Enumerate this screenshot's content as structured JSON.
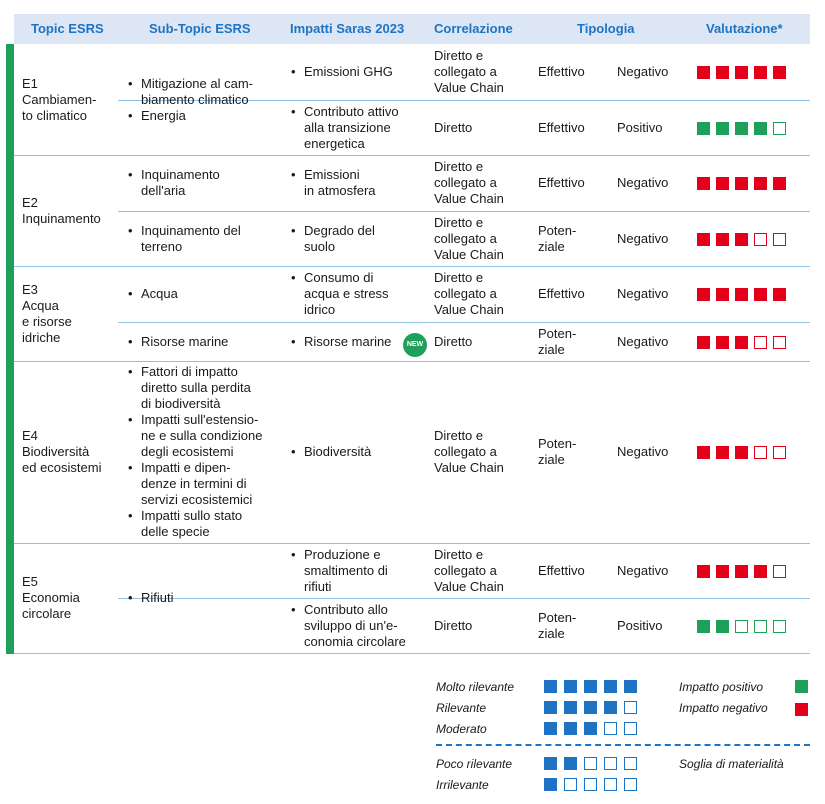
{
  "colors": {
    "negative": "#e3001b",
    "positive": "#1ea05a",
    "neutral": "#1e74c2",
    "header_bg": "#dce6f5",
    "header_text": "#1e74c2"
  },
  "headers": [
    "Topic ESRS",
    "Sub-Topic ESRS",
    "Impatti Saras 2023",
    "Correlazione",
    "Tipologia",
    "Valutazione*"
  ],
  "topics": [
    {
      "label": "E1\nCambiamen-\nto climatico"
    },
    {
      "label": "E2\nInquinamento"
    },
    {
      "label": "E3\nAcqua\ne risorse\nidriche"
    },
    {
      "label": "E4\nBiodiversità\ned ecosistemi"
    },
    {
      "label": "E5\nEconomia\ncircolare"
    }
  ],
  "subtopics": [
    [
      "Mitigazione al cam-\nbiamento climatico",
      "Energia"
    ],
    [
      "Inquinamento\ndell'aria"
    ],
    [
      "Inquinamento del\nterreno"
    ],
    [
      "Acqua"
    ],
    [
      "Risorse marine"
    ],
    [
      "Fattori di impatto\ndiretto sulla perdita\ndi biodiversità",
      "Impatti sull'estensio-\nne e sulla condizione\ndegli ecosistemi",
      "Impatti e dipen-\ndenze in termini di\nservizi ecosistemici",
      "Impatti sullo stato\ndelle specie"
    ],
    [
      "Rifiuti"
    ]
  ],
  "rows": [
    {
      "impact": "Emissioni GHG",
      "correlation": "Diretto e\ncollegato a\nValue Chain",
      "type": "Effettivo",
      "sign": "Negativo",
      "score": 5,
      "positive": false
    },
    {
      "impact": "Contributo attivo\nalla transizione\nenergetica",
      "correlation": "Diretto",
      "type": "Effettivo",
      "sign": "Positivo",
      "score": 4,
      "positive": true
    },
    {
      "impact": "Emissioni\nin atmosfera",
      "correlation": "Diretto e\ncollegato a\nValue Chain",
      "type": "Effettivo",
      "sign": "Negativo",
      "score": 5,
      "positive": false
    },
    {
      "impact": "Degrado del\nsuolo",
      "correlation": "Diretto e\ncollegato a\nValue Chain",
      "type": "Poten-\nziale",
      "sign": "Negativo",
      "score": 3,
      "positive": false
    },
    {
      "impact": "Consumo di\nacqua e stress\nidrico",
      "correlation": "Diretto e\ncollegato a\nValue Chain",
      "type": "Effettivo",
      "sign": "Negativo",
      "score": 5,
      "positive": false
    },
    {
      "impact": "Risorse marine",
      "correlation": "Diretto",
      "type": "Poten-\nziale",
      "sign": "Negativo",
      "score": 3,
      "positive": false,
      "badge": "NEW"
    },
    {
      "impact": "Biodiversità",
      "correlation": "Diretto e\ncollegato a\nValue Chain",
      "type": "Poten-\nziale",
      "sign": "Negativo",
      "score": 3,
      "positive": false
    },
    {
      "impact": "Produzione e\nsmaltimento di\nrifiuti",
      "correlation": "Diretto e\ncollegato a\nValue Chain",
      "type": "Effettivo",
      "sign": "Negativo",
      "score": 4,
      "positive": false
    },
    {
      "impact": "Contributo allo\nsviluppo di un'e-\nconomia circolare",
      "correlation": "Diretto",
      "type": "Poten-\nziale",
      "sign": "Positivo",
      "score": 2,
      "positive": true
    }
  ],
  "legend": {
    "levels": [
      {
        "label": "Molto rilevante",
        "score": 5
      },
      {
        "label": "Rilevante",
        "score": 4
      },
      {
        "label": "Moderato",
        "score": 3
      },
      {
        "label": "Poco rilevante",
        "score": 2
      },
      {
        "label": "Irrilevante",
        "score": 1
      }
    ],
    "positive": "Impatto positivo",
    "negative": "Impatto negativo",
    "threshold": "Soglia di materialità"
  }
}
